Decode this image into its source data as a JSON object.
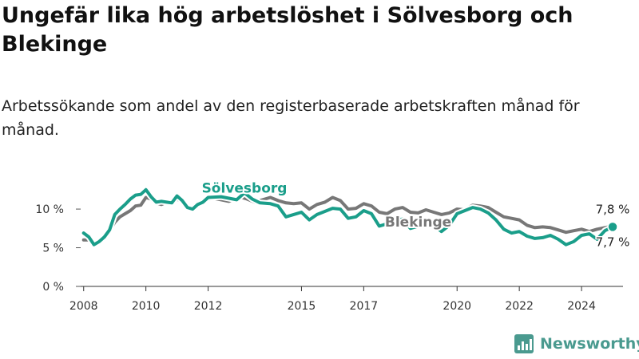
{
  "title": "Ungefär lika hög arbetslöshet i Sölvesborg och Blekinge",
  "subtitle": "Arbetssökande som andel av den registerbaserade arbetskraften månad för månad.",
  "brand": {
    "name": "Newsworthy",
    "logo_icon": "bar-chart-logo-icon",
    "color": "#4a9a8f"
  },
  "chart_data": {
    "type": "line",
    "x_range": [
      "2007-10",
      "2025-05"
    ],
    "ylim": [
      0,
      13
    ],
    "x_ticks": [
      {
        "label": "2008",
        "date": "2008-01"
      },
      {
        "label": "2010",
        "date": "2010-01"
      },
      {
        "label": "2012",
        "date": "2012-01"
      },
      {
        "label": "2015",
        "date": "2015-01"
      },
      {
        "label": "2017",
        "date": "2017-01"
      },
      {
        "label": "2020",
        "date": "2020-01"
      },
      {
        "label": "2022",
        "date": "2022-01"
      },
      {
        "label": "2024",
        "date": "2024-01"
      }
    ],
    "y_ticks": [
      {
        "label": "0 %",
        "value": 0
      },
      {
        "label": "5 %",
        "value": 5
      },
      {
        "label": "10 %",
        "value": 10
      }
    ],
    "grid": false,
    "legend": "inline labels",
    "end_labels": [
      {
        "series": "Blekinge",
        "text": "7,8 %"
      },
      {
        "series": "Sölvesborg",
        "text": "7,7 %"
      }
    ],
    "series": [
      {
        "name": "Blekinge",
        "color": "#777777",
        "points": [
          [
            "2008-01",
            6.0
          ],
          [
            "2008-03",
            6.0
          ],
          [
            "2008-05",
            5.6
          ],
          [
            "2008-07",
            6.0
          ],
          [
            "2008-09",
            6.6
          ],
          [
            "2008-11",
            7.2
          ],
          [
            "2009-01",
            8.3
          ],
          [
            "2009-03",
            9.0
          ],
          [
            "2009-05",
            9.4
          ],
          [
            "2009-07",
            9.8
          ],
          [
            "2009-09",
            10.4
          ],
          [
            "2009-11",
            10.5
          ],
          [
            "2010-01",
            11.5
          ],
          [
            "2010-03",
            11.3
          ],
          [
            "2010-05",
            10.8
          ],
          [
            "2010-07",
            10.6
          ],
          [
            "2010-09",
            10.9
          ],
          [
            "2010-11",
            10.7
          ],
          [
            "2011-01",
            11.3
          ],
          [
            "2011-03",
            11.0
          ],
          [
            "2011-05",
            10.3
          ],
          [
            "2011-07",
            10.1
          ],
          [
            "2011-09",
            10.8
          ],
          [
            "2011-11",
            10.9
          ],
          [
            "2012-01",
            11.3
          ],
          [
            "2012-03",
            11.4
          ],
          [
            "2012-06",
            11.2
          ],
          [
            "2012-09",
            11.0
          ],
          [
            "2013-01",
            11.6
          ],
          [
            "2013-04",
            11.3
          ],
          [
            "2013-07",
            10.9
          ],
          [
            "2013-10",
            11.2
          ],
          [
            "2014-01",
            11.5
          ],
          [
            "2014-04",
            11.1
          ],
          [
            "2014-07",
            10.8
          ],
          [
            "2014-10",
            10.7
          ],
          [
            "2015-01",
            10.8
          ],
          [
            "2015-04",
            10.0
          ],
          [
            "2015-07",
            10.6
          ],
          [
            "2015-10",
            10.9
          ],
          [
            "2016-01",
            11.5
          ],
          [
            "2016-04",
            11.1
          ],
          [
            "2016-07",
            10.0
          ],
          [
            "2016-10",
            10.1
          ],
          [
            "2017-01",
            10.7
          ],
          [
            "2017-04",
            10.4
          ],
          [
            "2017-07",
            9.6
          ],
          [
            "2017-10",
            9.4
          ],
          [
            "2018-01",
            10.0
          ],
          [
            "2018-04",
            10.2
          ],
          [
            "2018-07",
            9.6
          ],
          [
            "2018-10",
            9.5
          ],
          [
            "2019-01",
            9.9
          ],
          [
            "2019-04",
            9.6
          ],
          [
            "2019-07",
            9.3
          ],
          [
            "2019-10",
            9.5
          ],
          [
            "2020-01",
            10.0
          ],
          [
            "2020-04",
            9.9
          ],
          [
            "2020-07",
            10.5
          ],
          [
            "2020-10",
            10.4
          ],
          [
            "2021-01",
            10.2
          ],
          [
            "2021-04",
            9.6
          ],
          [
            "2021-07",
            9.0
          ],
          [
            "2021-10",
            8.8
          ],
          [
            "2022-01",
            8.6
          ],
          [
            "2022-04",
            7.9
          ],
          [
            "2022-07",
            7.6
          ],
          [
            "2022-10",
            7.7
          ],
          [
            "2023-01",
            7.6
          ],
          [
            "2023-04",
            7.3
          ],
          [
            "2023-07",
            7.0
          ],
          [
            "2023-10",
            7.2
          ],
          [
            "2024-01",
            7.4
          ],
          [
            "2024-04",
            7.1
          ],
          [
            "2024-07",
            7.4
          ],
          [
            "2024-10",
            7.6
          ],
          [
            "2025-01",
            7.8
          ]
        ]
      },
      {
        "name": "Sölvesborg",
        "color": "#1a9e8a",
        "points": [
          [
            "2008-01",
            6.9
          ],
          [
            "2008-03",
            6.4
          ],
          [
            "2008-05",
            5.4
          ],
          [
            "2008-07",
            5.8
          ],
          [
            "2008-09",
            6.4
          ],
          [
            "2008-11",
            7.3
          ],
          [
            "2009-01",
            9.3
          ],
          [
            "2009-03",
            10.0
          ],
          [
            "2009-05",
            10.6
          ],
          [
            "2009-07",
            11.3
          ],
          [
            "2009-09",
            11.8
          ],
          [
            "2009-11",
            11.9
          ],
          [
            "2010-01",
            12.5
          ],
          [
            "2010-03",
            11.6
          ],
          [
            "2010-05",
            10.9
          ],
          [
            "2010-07",
            11.0
          ],
          [
            "2010-09",
            10.9
          ],
          [
            "2010-11",
            10.8
          ],
          [
            "2011-01",
            11.7
          ],
          [
            "2011-03",
            11.1
          ],
          [
            "2011-05",
            10.2
          ],
          [
            "2011-07",
            10.0
          ],
          [
            "2011-09",
            10.6
          ],
          [
            "2011-11",
            10.9
          ],
          [
            "2012-01",
            11.5
          ],
          [
            "2012-06",
            11.6
          ],
          [
            "2012-12",
            11.2
          ],
          [
            "2013-03",
            12.1
          ],
          [
            "2013-06",
            11.3
          ],
          [
            "2013-09",
            10.8
          ],
          [
            "2014-01",
            10.7
          ],
          [
            "2014-04",
            10.4
          ],
          [
            "2014-07",
            9.0
          ],
          [
            "2014-10",
            9.3
          ],
          [
            "2015-01",
            9.6
          ],
          [
            "2015-04",
            8.6
          ],
          [
            "2015-07",
            9.3
          ],
          [
            "2015-10",
            9.7
          ],
          [
            "2016-01",
            10.1
          ],
          [
            "2016-04",
            10.0
          ],
          [
            "2016-07",
            8.8
          ],
          [
            "2016-10",
            9.0
          ],
          [
            "2017-01",
            9.8
          ],
          [
            "2017-04",
            9.4
          ],
          [
            "2017-07",
            7.8
          ],
          [
            "2017-10",
            8.1
          ],
          [
            "2018-01",
            8.6
          ],
          [
            "2018-04",
            8.7
          ],
          [
            "2018-07",
            7.5
          ],
          [
            "2018-10",
            7.8
          ],
          [
            "2019-01",
            8.2
          ],
          [
            "2019-04",
            7.9
          ],
          [
            "2019-07",
            7.1
          ],
          [
            "2019-10",
            7.9
          ],
          [
            "2020-01",
            9.4
          ],
          [
            "2020-04",
            9.8
          ],
          [
            "2020-07",
            10.2
          ],
          [
            "2020-10",
            10.0
          ],
          [
            "2021-01",
            9.5
          ],
          [
            "2021-04",
            8.6
          ],
          [
            "2021-07",
            7.4
          ],
          [
            "2021-10",
            6.9
          ],
          [
            "2022-01",
            7.1
          ],
          [
            "2022-04",
            6.5
          ],
          [
            "2022-07",
            6.2
          ],
          [
            "2022-10",
            6.3
          ],
          [
            "2023-01",
            6.6
          ],
          [
            "2023-04",
            6.1
          ],
          [
            "2023-07",
            5.4
          ],
          [
            "2023-10",
            5.8
          ],
          [
            "2024-01",
            6.6
          ],
          [
            "2024-04",
            6.8
          ],
          [
            "2024-07",
            6.1
          ],
          [
            "2024-10",
            7.2
          ],
          [
            "2025-01",
            7.7
          ]
        ]
      }
    ]
  }
}
